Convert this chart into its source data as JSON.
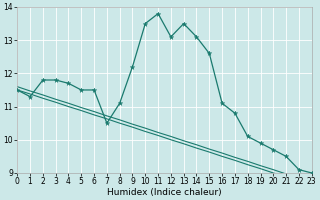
{
  "xlabel": "Humidex (Indice chaleur)",
  "x_values": [
    0,
    1,
    2,
    3,
    4,
    5,
    6,
    7,
    8,
    9,
    10,
    11,
    12,
    13,
    14,
    15,
    16,
    17,
    18,
    19,
    20,
    21,
    22,
    23
  ],
  "main_y": [
    11.5,
    11.3,
    11.8,
    11.8,
    11.7,
    11.5,
    11.5,
    10.5,
    11.1,
    12.2,
    13.5,
    13.8,
    13.1,
    13.5,
    13.1,
    12.6,
    11.1,
    10.8,
    10.1,
    9.9,
    9.7,
    9.5,
    9.1,
    9.0
  ],
  "line2_y": [
    11.5,
    11.38,
    11.25,
    11.13,
    11.0,
    10.88,
    10.75,
    10.63,
    10.5,
    10.38,
    10.25,
    10.13,
    10.0,
    9.88,
    9.75,
    9.63,
    9.5,
    9.38,
    9.25,
    9.13,
    9.0,
    8.88,
    8.75,
    8.63
  ],
  "line3_y": [
    11.6,
    11.47,
    11.35,
    11.22,
    11.1,
    10.97,
    10.85,
    10.72,
    10.6,
    10.47,
    10.35,
    10.22,
    10.1,
    9.97,
    9.85,
    9.72,
    9.6,
    9.47,
    9.35,
    9.22,
    9.1,
    8.97,
    8.85,
    8.72
  ],
  "bg_color": "#cce8e8",
  "grid_color": "#ffffff",
  "line_color": "#1a7a6e",
  "xlim": [
    0,
    23
  ],
  "ylim": [
    9,
    14
  ],
  "yticks": [
    9,
    10,
    11,
    12,
    13,
    14
  ],
  "xticks": [
    0,
    1,
    2,
    3,
    4,
    5,
    6,
    7,
    8,
    9,
    10,
    11,
    12,
    13,
    14,
    15,
    16,
    17,
    18,
    19,
    20,
    21,
    22,
    23
  ],
  "tick_fontsize": 5.5,
  "xlabel_fontsize": 6.5
}
